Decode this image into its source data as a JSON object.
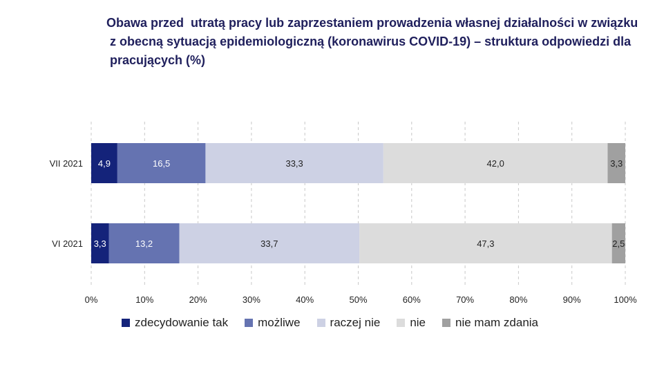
{
  "title_lines": [
    "Obawa przed  utratą pracy lub zaprzestaniem prowadzenia własnej działalności w związku",
    " z obecną sytuacją epidemiologiczną (koronawirus COVID-19) – struktura odpowiedzi dla",
    " pracujących (%)"
  ],
  "colors": {
    "zdecydowanie_tak": "#14237a",
    "mozliwe": "#6573b1",
    "raczej_nie": "#cdd1e4",
    "nie": "#dcdcdc",
    "nie_mam_zdania": "#a0a0a0"
  },
  "chart_data": {
    "type": "bar",
    "orientation": "horizontal",
    "stacked": true,
    "title": "Obawa przed utratą pracy lub zaprzestaniem prowadzenia własnej działalności w związku z obecną sytuacją epidemiologiczną (koronawirus COVID-19) – struktura odpowiedzi dla pracujących (%)",
    "categories": [
      "VII 2021",
      "VI 2021"
    ],
    "series": [
      {
        "name": "zdecydowanie tak",
        "values": [
          4.9,
          3.3
        ],
        "labels": [
          "4,9",
          "3,3"
        ]
      },
      {
        "name": "możliwe",
        "values": [
          16.5,
          13.2
        ],
        "labels": [
          "16,5",
          "13,2"
        ]
      },
      {
        "name": "raczej nie",
        "values": [
          33.3,
          33.7
        ],
        "labels": [
          "33,3",
          "33,7"
        ]
      },
      {
        "name": "nie",
        "values": [
          42.0,
          47.3
        ],
        "labels": [
          "42,0",
          "47,3"
        ]
      },
      {
        "name": "nie mam zdania",
        "values": [
          3.3,
          2.5
        ],
        "labels": [
          "3,3",
          "2,5"
        ]
      }
    ],
    "xlim": [
      0,
      100
    ],
    "xticks": [
      "0%",
      "10%",
      "20%",
      "30%",
      "40%",
      "50%",
      "60%",
      "70%",
      "80%",
      "90%",
      "100%"
    ],
    "grid": "vertical dashed",
    "legend_position": "bottom"
  }
}
